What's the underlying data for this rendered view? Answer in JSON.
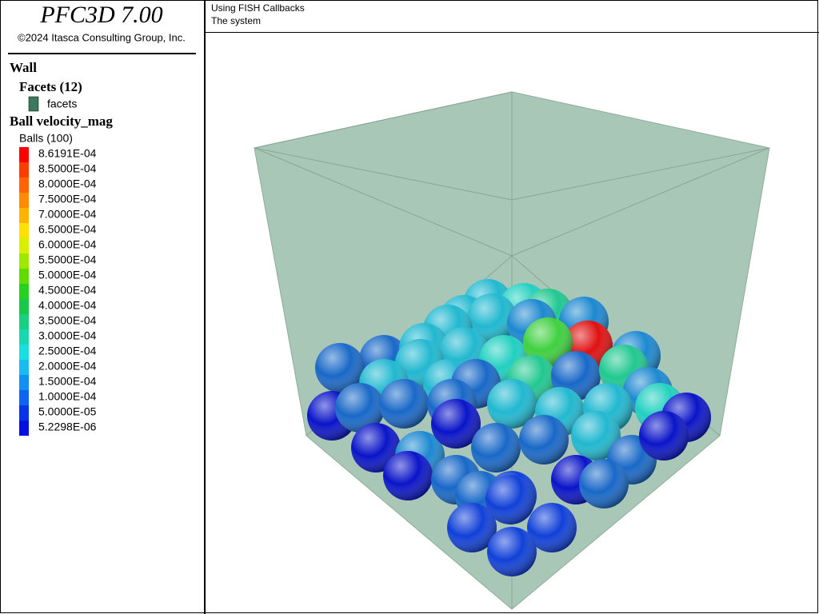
{
  "header": {
    "title": "PFC3D 7.00",
    "copyright": "©2024 Itasca Consulting Group, Inc."
  },
  "legend": {
    "wall": "Wall",
    "facets_title": "Facets (12)",
    "facets_label": "facets",
    "facets_color": "#3b7a5c",
    "ball_title": "Ball velocity_mag",
    "balls_label": "Balls (100)",
    "scale": [
      {
        "label": "8.6191E-04",
        "color": "#ff0000"
      },
      {
        "label": "8.5000E-04",
        "color": "#ff3c00"
      },
      {
        "label": "8.0000E-04",
        "color": "#ff6400"
      },
      {
        "label": "7.5000E-04",
        "color": "#ff8c00"
      },
      {
        "label": "7.0000E-04",
        "color": "#ffb400"
      },
      {
        "label": "6.5000E-04",
        "color": "#ffe000"
      },
      {
        "label": "6.0000E-04",
        "color": "#d8f000"
      },
      {
        "label": "5.5000E-04",
        "color": "#a0e800"
      },
      {
        "label": "5.0000E-04",
        "color": "#60dc00"
      },
      {
        "label": "4.5000E-04",
        "color": "#28d020"
      },
      {
        "label": "4.0000E-04",
        "color": "#18c848"
      },
      {
        "label": "3.5000E-04",
        "color": "#18d080"
      },
      {
        "label": "3.0000E-04",
        "color": "#18d8b0"
      },
      {
        "label": "2.5000E-04",
        "color": "#18e0e0"
      },
      {
        "label": "2.0000E-04",
        "color": "#18bcf0"
      },
      {
        "label": "1.5000E-04",
        "color": "#1090f0"
      },
      {
        "label": "1.0000E-04",
        "color": "#0c64f0"
      },
      {
        "label": "5.0000E-05",
        "color": "#0834e8"
      },
      {
        "label": "5.2298E-06",
        "color": "#0010e0"
      }
    ]
  },
  "view": {
    "title": "Using FISH Callbacks",
    "subtitle": "The system"
  }
}
